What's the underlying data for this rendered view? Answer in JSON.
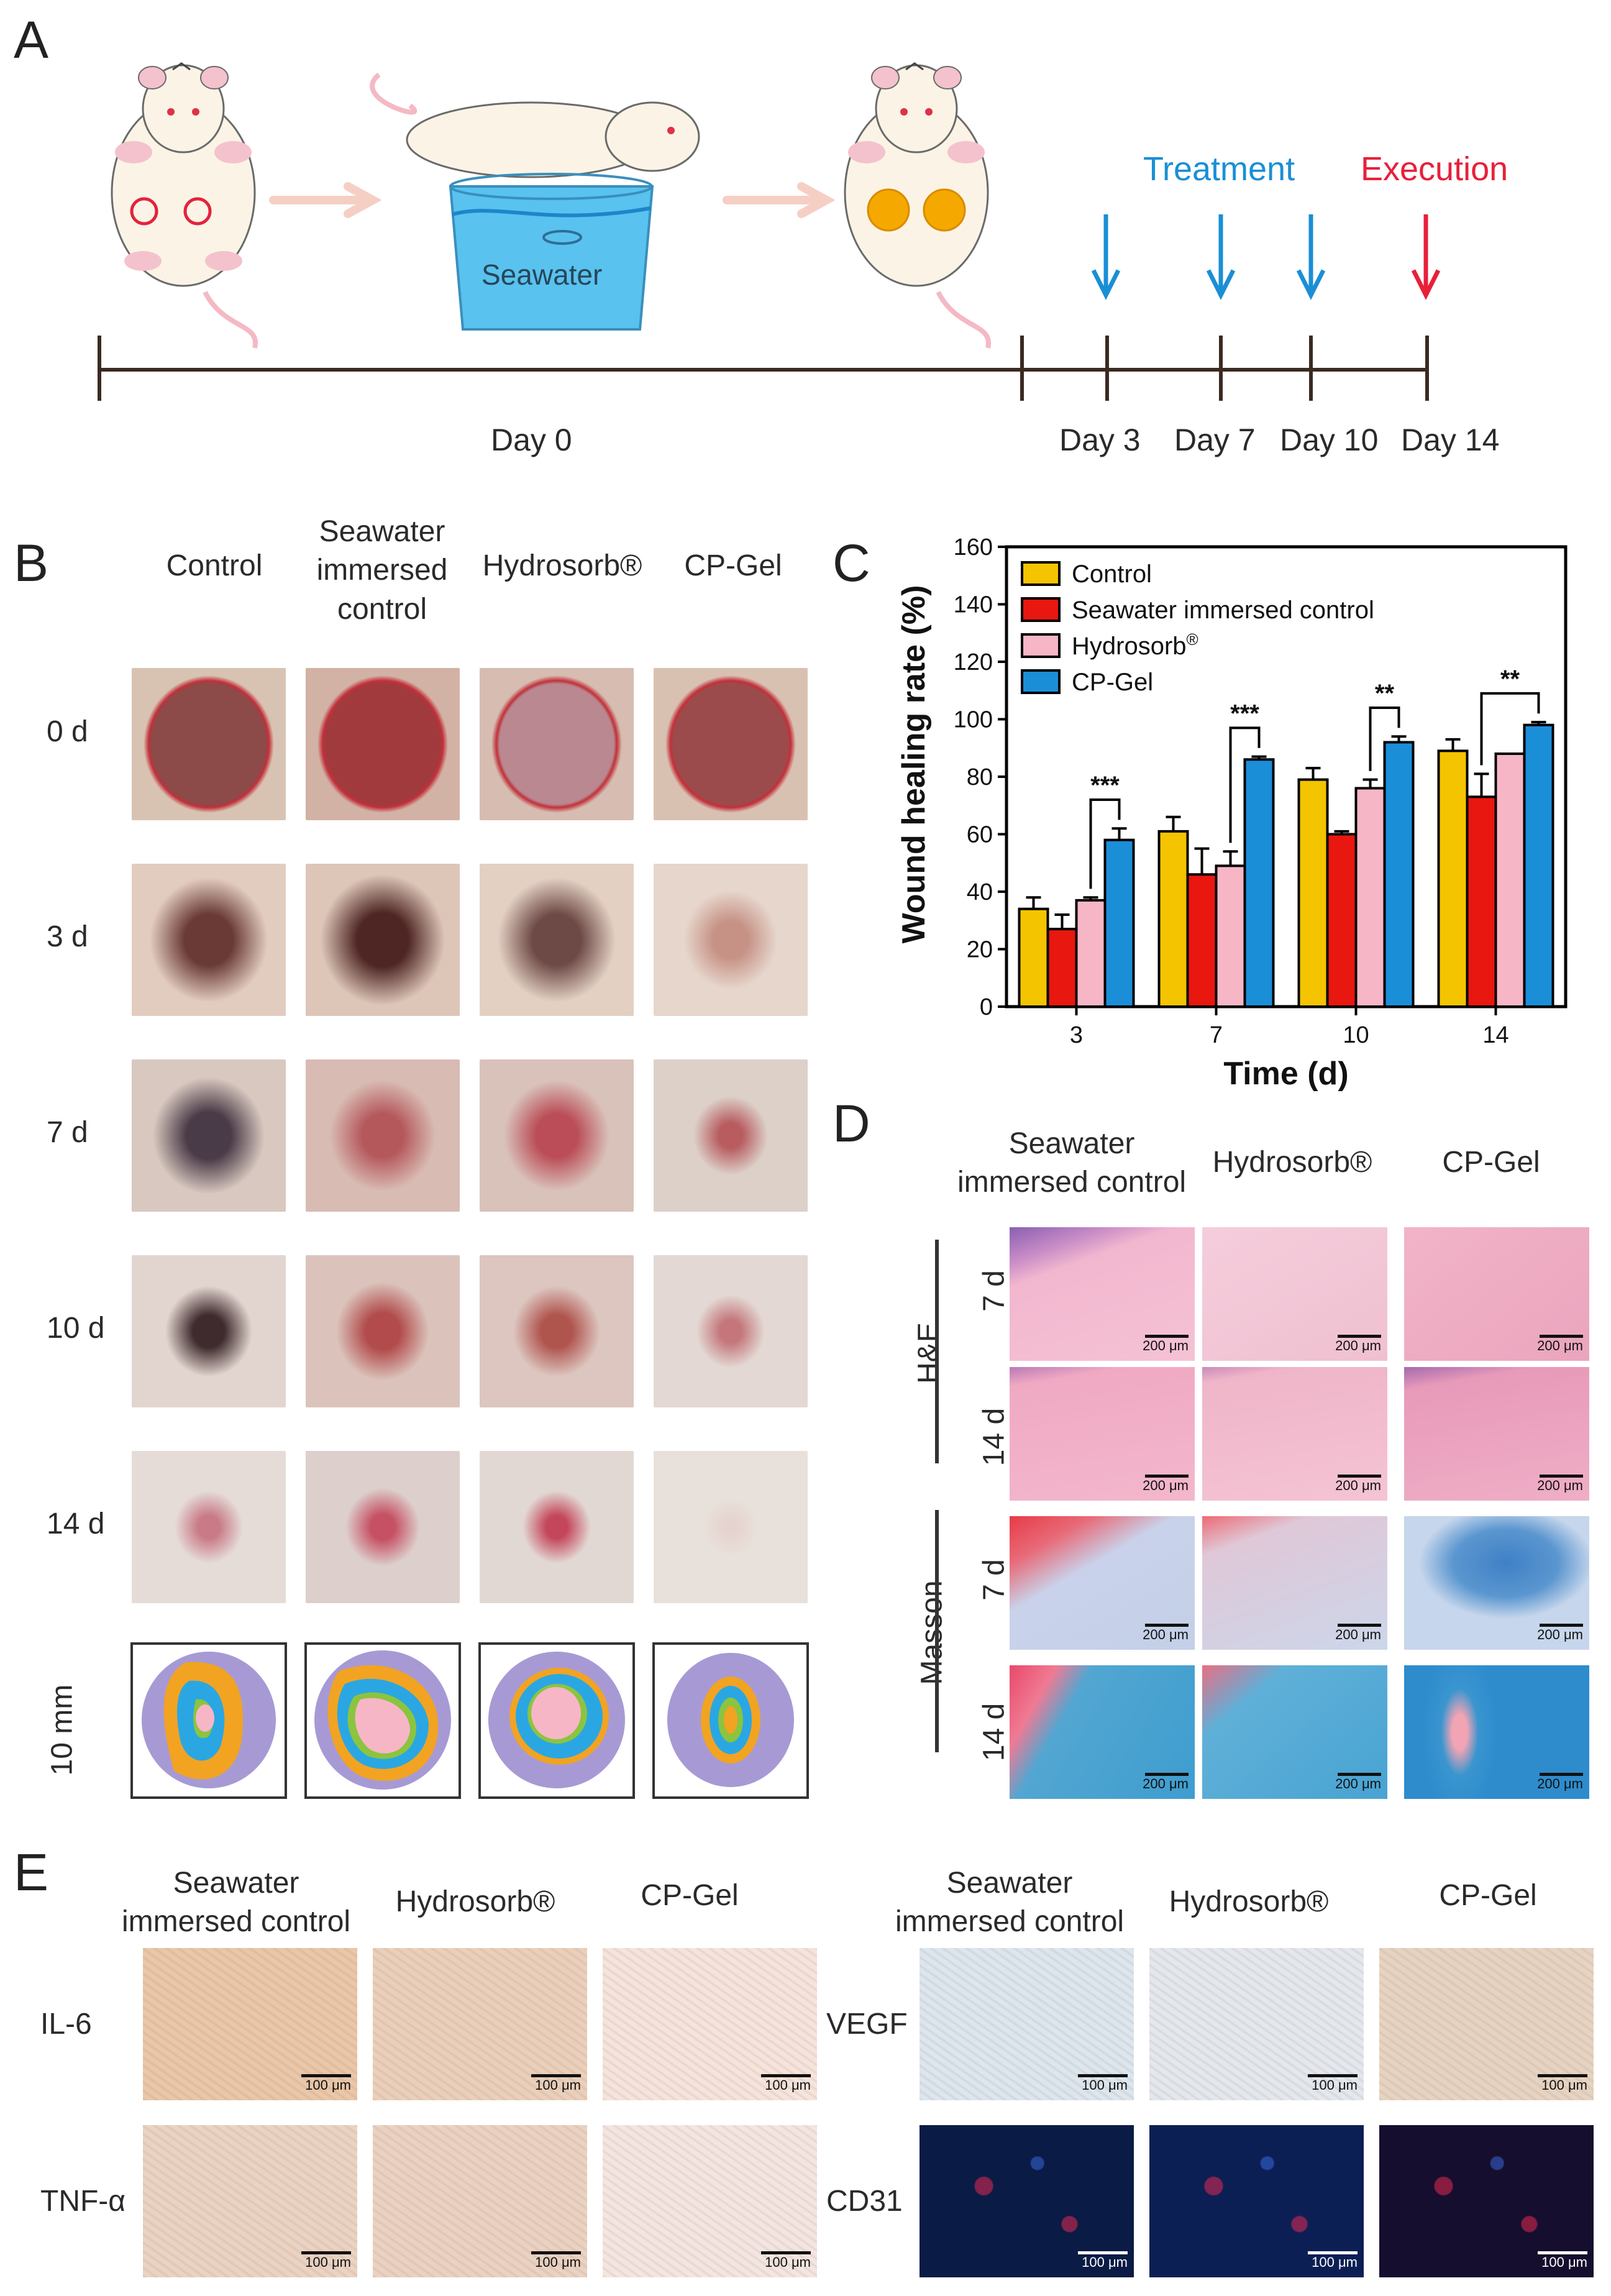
{
  "panels": {
    "a": "A",
    "b": "B",
    "c": "C",
    "d": "D",
    "e": "E"
  },
  "panel_a": {
    "bucket_label": "Seawater",
    "treatment_label": "Treatment",
    "execution_label": "Execution",
    "day_labels": [
      "Day 0",
      "Day 3",
      "Day 7",
      "Day 10",
      "Day 14"
    ],
    "colors": {
      "treatment": "#1a8fd6",
      "execution": "#e8203a",
      "arrow": "#f6cfc4"
    }
  },
  "panel_b": {
    "columns": [
      "Control",
      "Seawater\nimmersed\ncontrol",
      "Hydrosorb®",
      "CP-Gel"
    ],
    "rows": [
      "0 d",
      "3 d",
      "7 d",
      "10 d",
      "14 d"
    ],
    "scale_label": "10 mm"
  },
  "chart_data": {
    "type": "bar",
    "title": "",
    "xlabel": "Time (d)",
    "ylabel": "Wound healing rate (%)",
    "ylim": [
      0,
      160
    ],
    "yticks": [
      "0",
      "20",
      "40",
      "60",
      "80",
      "100",
      "120",
      "140",
      "160"
    ],
    "categories": [
      "3",
      "7",
      "10",
      "14"
    ],
    "series": [
      {
        "name": "Control",
        "color": "#f5c400",
        "values": [
          34,
          61,
          79,
          89
        ],
        "errors": [
          4,
          5,
          4,
          4
        ]
      },
      {
        "name": "Seawater immersed control",
        "color": "#e8170f",
        "values": [
          27,
          46,
          60,
          73
        ],
        "errors": [
          5,
          9,
          1,
          8
        ]
      },
      {
        "name": "Hydrosorb",
        "legend_sup": "®",
        "color": "#f7b6c6",
        "values": [
          37,
          49,
          76,
          88
        ],
        "errors": [
          1,
          5,
          3,
          0
        ]
      },
      {
        "name": "CP-Gel",
        "color": "#1b8ed8",
        "values": [
          58,
          86,
          92,
          98
        ],
        "errors": [
          4,
          1,
          2,
          1
        ]
      }
    ],
    "significance": [
      {
        "category": "3",
        "label": "***",
        "from_series": 2,
        "to_series": 3
      },
      {
        "category": "7",
        "label": "***",
        "from_series": 2,
        "to_series": 3
      },
      {
        "category": "10",
        "label": "**",
        "from_series": 2,
        "to_series": 3
      },
      {
        "category": "14",
        "label": "**",
        "from_series": 1,
        "to_series": 3
      }
    ],
    "legend": "top-left"
  },
  "panel_d": {
    "columns": [
      "Seawater\nimmersed control",
      "Hydrosorb®",
      "CP-Gel"
    ],
    "stain_groups": [
      "H&E",
      "Masson"
    ],
    "time_labels": [
      "7 d",
      "14 d",
      "7 d",
      "14 d"
    ],
    "scale_text": "200 μm"
  },
  "panel_e": {
    "columns_left": [
      "Seawater\nimmersed control",
      "Hydrosorb®",
      "CP-Gel"
    ],
    "columns_right": [
      "Seawater\nimmersed control",
      "Hydrosorb®",
      "CP-Gel"
    ],
    "rows_left": [
      "IL-6",
      "TNF-α"
    ],
    "rows_right": [
      "VEGF",
      "CD31"
    ],
    "scale_text": "100 μm"
  }
}
